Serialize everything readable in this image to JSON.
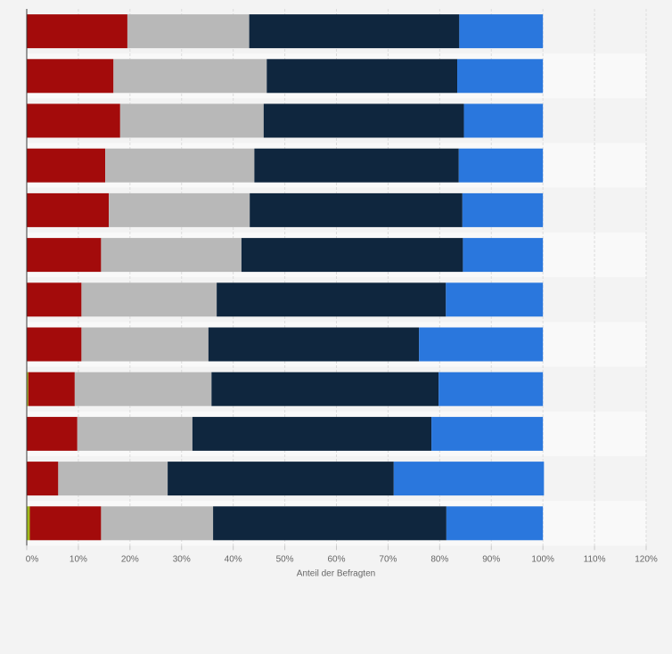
{
  "chart_data": {
    "type": "bar",
    "orientation": "horizontal",
    "stacked": true,
    "title": "",
    "xlabel": "Anteil der Befragten",
    "ylabel": "",
    "xlim": [
      0,
      120
    ],
    "x_ticks": [
      "0%",
      "10%",
      "20%",
      "30%",
      "40%",
      "50%",
      "60%",
      "70%",
      "80%",
      "90%",
      "100%",
      "110%",
      "120%"
    ],
    "grid": true,
    "legend": "none",
    "categories": [
      "",
      "",
      "",
      "",
      "",
      "",
      "",
      "",
      "",
      "",
      "",
      ""
    ],
    "series": [
      {
        "color": "#a0ba1c",
        "values": [
          0,
          0,
          0,
          0,
          0,
          0,
          0,
          0,
          0.3,
          0,
          0,
          0.6
        ]
      },
      {
        "color": "#a30b0b",
        "values": [
          19.5,
          16.8,
          18.1,
          15.2,
          15.9,
          14.4,
          10.6,
          10.6,
          9.0,
          9.8,
          6.1,
          13.8
        ]
      },
      {
        "color": "#b8b8b8",
        "values": [
          23.6,
          29.7,
          27.8,
          28.9,
          27.3,
          27.2,
          26.2,
          24.6,
          26.5,
          22.3,
          21.2,
          21.7
        ]
      },
      {
        "color": "#0f263e",
        "values": [
          40.7,
          36.9,
          38.8,
          39.6,
          41.2,
          42.9,
          44.4,
          40.8,
          44.0,
          46.3,
          43.8,
          45.2
        ]
      },
      {
        "color": "#2a77dd",
        "values": [
          16.2,
          16.6,
          15.3,
          16.3,
          15.6,
          15.5,
          18.8,
          24.0,
          20.2,
          21.6,
          29.1,
          18.7
        ]
      }
    ]
  }
}
